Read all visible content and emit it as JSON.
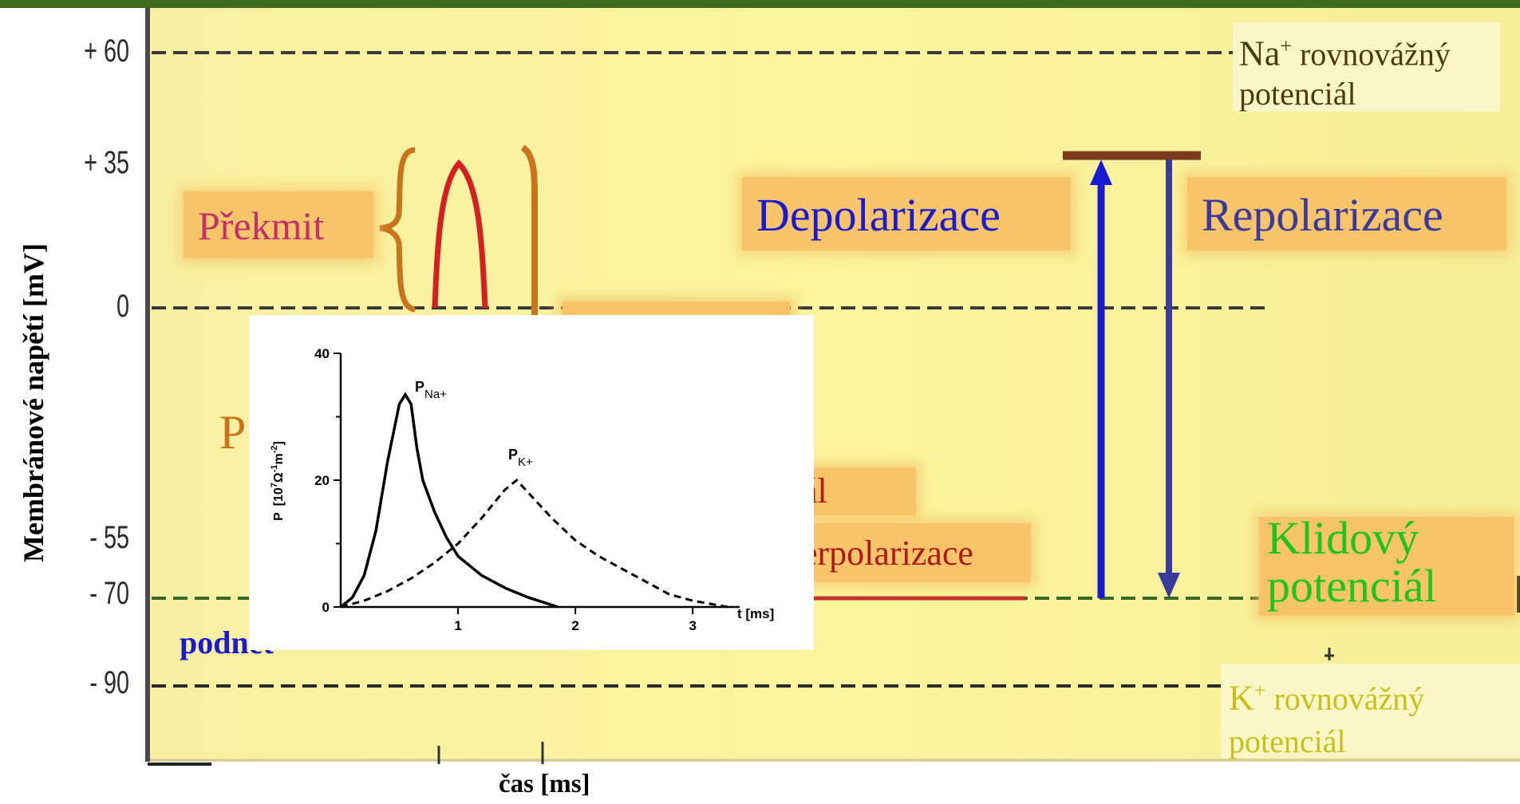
{
  "y_axis": {
    "label": "Membránové napětí  [mV]",
    "ticks": [
      "+ 60",
      "+ 35",
      "0",
      "- 55",
      "- 70",
      "- 90"
    ]
  },
  "x_axis": {
    "label": "čas  [ms]"
  },
  "labels": {
    "na_equilibrium": "Na⁺ rovnovážný potenciál",
    "na_line1": "Na",
    "na_sup": "+",
    "na_line1_rest": " rovnovážný",
    "na_line2": "potenciál",
    "k_line1": "K",
    "k_sup": "+",
    "k_line1_rest": " rovnovážný",
    "k_line2": "potenciál",
    "overshoot": "Překmit",
    "depolarization": "Depolarizace",
    "repolarization": "Repolarizace",
    "resting_line1": "Klidový",
    "resting_line2": "potenciál",
    "stimulus": "podnět",
    "partial_p": "P",
    "partial_al": "ál",
    "partial_hyper": "erpolarizace"
  },
  "colors": {
    "depolarization": "#1a1ad0",
    "repolarization": "#3a3a9c",
    "resting": "#1fc41f",
    "overshoot": "#c0306a",
    "k_label": "#c6c01a",
    "na_label": "#4a3a10",
    "action_potential": "#d62020",
    "bracket": "#c8741c"
  },
  "chart_data": {
    "type": "line",
    "xlabel": "t [ms]",
    "ylabel": "P  [10⁷Ω⁻¹m⁻²]",
    "ylabel_parts": {
      "p": "P",
      "unit": "[10",
      "exp7": "7",
      "omega": "Ω",
      "exp1": "-1",
      "m": "m",
      "exp2": "-2",
      "close": "]"
    },
    "xlim": [
      0,
      3.4
    ],
    "ylim": [
      0,
      40
    ],
    "x_ticks": [
      "1",
      "2",
      "3"
    ],
    "y_ticks": [
      "0",
      "20",
      "40"
    ],
    "series": [
      {
        "name": "PNa+",
        "name_main": "P",
        "name_sub": "Na+",
        "style": "solid",
        "x": [
          0,
          0.1,
          0.2,
          0.3,
          0.4,
          0.5,
          0.55,
          0.6,
          0.65,
          0.7,
          0.8,
          0.9,
          1.0,
          1.2,
          1.4,
          1.6,
          1.85
        ],
        "y": [
          0,
          1.5,
          5,
          12,
          23,
          32,
          33.5,
          32,
          25,
          20,
          15,
          11,
          8,
          5,
          3,
          1.5,
          0
        ]
      },
      {
        "name": "PK+",
        "name_main": "P",
        "name_sub": "K+",
        "style": "dashed",
        "x": [
          0,
          0.2,
          0.4,
          0.6,
          0.8,
          1.0,
          1.2,
          1.4,
          1.5,
          1.6,
          1.8,
          2.0,
          2.2,
          2.4,
          2.6,
          2.8,
          3.0,
          3.3
        ],
        "y": [
          0,
          1,
          2.5,
          4.5,
          7,
          10,
          14,
          18.5,
          20,
          18,
          14,
          10.5,
          8,
          6,
          4,
          2,
          1,
          0
        ]
      }
    ]
  }
}
